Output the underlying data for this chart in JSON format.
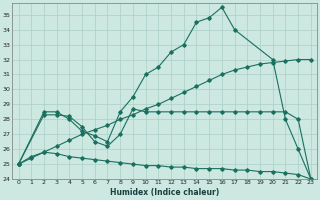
{
  "xlabel": "Humidex (Indice chaleur)",
  "xlim": [
    -0.5,
    23.5
  ],
  "ylim": [
    24,
    35.8
  ],
  "yticks": [
    24,
    25,
    26,
    27,
    28,
    29,
    30,
    31,
    32,
    33,
    34,
    35
  ],
  "xticks": [
    0,
    1,
    2,
    3,
    4,
    5,
    6,
    7,
    8,
    9,
    10,
    11,
    12,
    13,
    14,
    15,
    16,
    17,
    18,
    19,
    20,
    21,
    22,
    23
  ],
  "xtick_labels": [
    "0",
    "1",
    "2",
    "3",
    "4",
    "5",
    "6",
    "7",
    "8",
    "9",
    "10",
    "11",
    "12",
    "13",
    "14",
    "15",
    "16",
    "17",
    "18",
    "19",
    "20",
    "21",
    "22",
    "23"
  ],
  "line_color": "#1a7060",
  "background_color": "#cce8e0",
  "grid_color": "#aacfc8",
  "curve1_x": [
    0,
    2,
    3,
    4,
    5,
    6,
    7,
    8,
    9,
    10,
    11,
    12,
    13,
    14,
    15,
    16,
    17,
    20,
    21,
    22,
    23
  ],
  "curve1_y": [
    25.0,
    28.5,
    28.5,
    28.0,
    27.2,
    26.9,
    26.5,
    28.5,
    29.5,
    31.0,
    31.5,
    32.5,
    33.0,
    34.5,
    34.8,
    35.5,
    34.0,
    32.0,
    28.0,
    26.0,
    24.0
  ],
  "curve2_x": [
    0,
    1,
    2,
    3,
    4,
    5,
    6,
    7,
    8,
    9,
    10,
    11,
    12,
    13,
    14,
    15,
    16,
    17,
    18,
    19,
    20,
    21,
    22,
    23
  ],
  "curve2_y": [
    25.0,
    25.4,
    25.8,
    26.2,
    26.6,
    27.0,
    27.3,
    27.6,
    28.0,
    28.3,
    28.7,
    29.0,
    29.4,
    29.8,
    30.2,
    30.6,
    31.0,
    31.3,
    31.5,
    31.7,
    31.8,
    31.9,
    32.0,
    32.0
  ],
  "curve3_x": [
    0,
    2,
    3,
    4,
    5,
    6,
    7,
    8,
    9,
    10,
    11,
    12,
    13,
    14,
    15,
    16,
    17,
    18,
    19,
    20,
    21,
    22,
    23
  ],
  "curve3_y": [
    25.0,
    28.3,
    28.3,
    28.2,
    27.5,
    26.5,
    26.2,
    27.0,
    28.7,
    28.5,
    28.5,
    28.5,
    28.5,
    28.5,
    28.5,
    28.5,
    28.5,
    28.5,
    28.5,
    28.5,
    28.5,
    28.0,
    24.0
  ],
  "curve4_x": [
    0,
    1,
    2,
    3,
    4,
    5,
    6,
    7,
    8,
    9,
    10,
    11,
    12,
    13,
    14,
    15,
    16,
    17,
    18,
    19,
    20,
    21,
    22,
    23
  ],
  "curve4_y": [
    25.0,
    25.5,
    25.8,
    25.7,
    25.5,
    25.4,
    25.3,
    25.2,
    25.1,
    25.0,
    24.9,
    24.9,
    24.8,
    24.8,
    24.7,
    24.7,
    24.7,
    24.6,
    24.6,
    24.5,
    24.5,
    24.4,
    24.3,
    24.0
  ]
}
